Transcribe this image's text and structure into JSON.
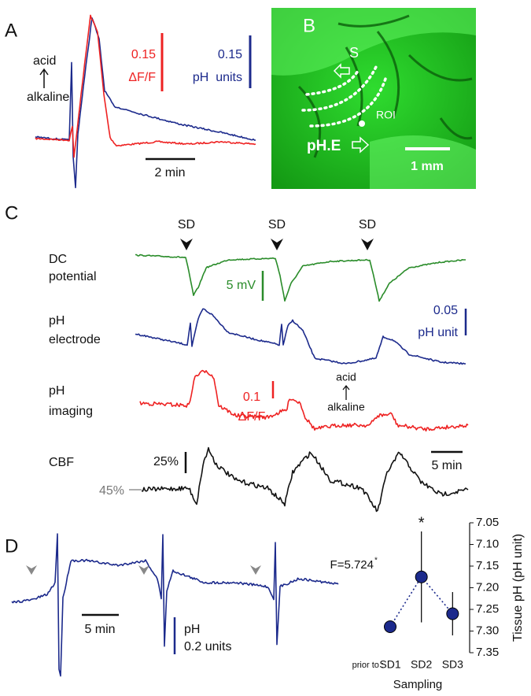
{
  "panel_a": {
    "label": "A",
    "acid": "acid",
    "alkaline": "alkaline",
    "red_scale_value": "0.15",
    "red_scale_unit": "ΔF/F",
    "blue_scale_value": "0.15",
    "blue_scale_unit": "pH  units",
    "time_scale": "2 min"
  },
  "panel_b": {
    "label": "B",
    "site": "S",
    "roi": "ROI",
    "electrode": "pH.E",
    "scale": "1 mm"
  },
  "panel_c": {
    "label": "C",
    "sd_markers": [
      "SD",
      "SD",
      "SD"
    ],
    "rows": [
      [
        "DC",
        "potential"
      ],
      [
        "pH",
        "electrode"
      ],
      [
        "pH",
        "imaging"
      ],
      [
        "CBF"
      ]
    ],
    "dc_scale": "5 mV",
    "ph_scale_value": "0.05",
    "ph_scale_unit": "pH unit",
    "imaging_scale_value": "0.1",
    "imaging_scale_unit": "ΔF/F",
    "acid": "acid",
    "alkaline": "alkaline",
    "cbf_scale": "25%",
    "cbf_baseline": "45%",
    "time_scale": "5 min"
  },
  "panel_d": {
    "label": "D",
    "time_scale": "5 min",
    "ph_scale_unit": "pH",
    "ph_scale_value": "0.2 units"
  },
  "chart_data": {
    "type": "errorbar",
    "categories": [
      "SD1",
      "SD2",
      "SD3"
    ],
    "x_prefix": "prior to :",
    "xlabel": "Sampling",
    "ylabel": "Tissue pH (pH unit)",
    "values": [
      7.29,
      7.175,
      7.26
    ],
    "errors": [
      0.012,
      0.105,
      0.05
    ],
    "significance": [
      null,
      "*",
      null
    ],
    "annotation": "F=5.724",
    "annotation_mark": "*",
    "color": "#1c2a8c",
    "ylim": [
      7.05,
      7.35
    ],
    "y_inverted": true,
    "y_axis_side": "right",
    "yticks": [
      7.05,
      {
        "value": 7.1,
        "label": "7.10"
      },
      7.15,
      {
        "value": 7.2,
        "label": "7.20"
      },
      7.25,
      {
        "value": 7.3,
        "label": "7.30"
      },
      7.35
    ]
  }
}
